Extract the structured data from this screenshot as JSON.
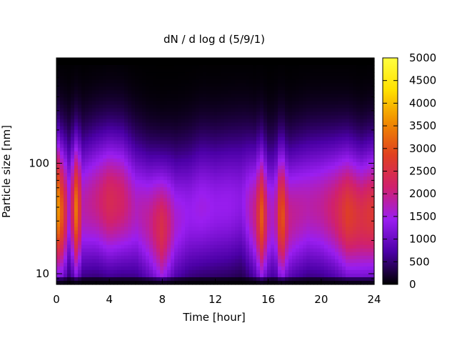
{
  "chart_data": {
    "type": "heatmap",
    "title": "dN / d log d (5/9/1)",
    "xlabel": "Time [hour]",
    "ylabel": "Particle size [nm]",
    "xlim": [
      0,
      24
    ],
    "ylim": [
      8,
      900
    ],
    "yscale": "log",
    "x_ticks": [
      0,
      4,
      8,
      12,
      16,
      20,
      24
    ],
    "x_minor_step": 1,
    "y_ticks": [
      10,
      100
    ],
    "colorbar": {
      "range": [
        0,
        5000
      ],
      "ticks": [
        0,
        500,
        1000,
        1500,
        2000,
        2500,
        3000,
        3500,
        4000,
        4500,
        5000
      ],
      "colormap": [
        "#000000",
        "#4b00a6",
        "#9a1ef0",
        "#d0206e",
        "#e04020",
        "#f08a00",
        "#ffe000",
        "#ffff40"
      ]
    },
    "times_hour": [
      0,
      0.5,
      1,
      1.5,
      2,
      3,
      4,
      5,
      6,
      7,
      8,
      9,
      10,
      11,
      12,
      13,
      14,
      15,
      15.5,
      16,
      16.5,
      17,
      17.5,
      18,
      19,
      20,
      21,
      22,
      23,
      24
    ],
    "peak_diameter_nm": [
      40,
      35,
      40,
      38,
      40,
      45,
      45,
      45,
      38,
      30,
      25,
      30,
      35,
      40,
      40,
      42,
      45,
      35,
      33,
      32,
      35,
      33,
      32,
      35,
      40,
      40,
      38,
      35,
      32,
      35
    ],
    "peak_concentration": [
      3900,
      2900,
      1500,
      3400,
      1800,
      2000,
      2400,
      2200,
      1700,
      1900,
      2500,
      1600,
      1400,
      1500,
      1400,
      1400,
      1300,
      2000,
      3100,
      1800,
      1600,
      3300,
      2000,
      1900,
      1800,
      1900,
      2200,
      2800,
      2500,
      2700
    ]
  }
}
